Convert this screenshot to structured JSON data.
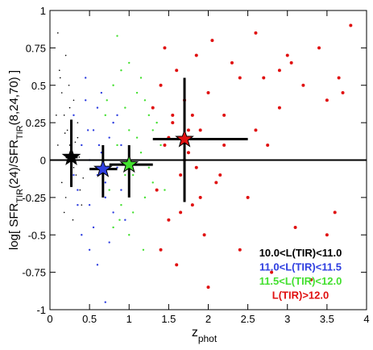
{
  "chart_data": {
    "type": "scatter",
    "xlabel_parts": [
      "z",
      "phot"
    ],
    "ylabel_parts": [
      "log[ SFR",
      "TIR",
      "(24)/SFR",
      "TIR",
      "(8,24,70) ]"
    ],
    "xlim": [
      0,
      4
    ],
    "ylim": [
      -1,
      1
    ],
    "xticks": [
      0,
      0.5,
      1,
      1.5,
      2,
      2.5,
      3,
      3.5,
      4
    ],
    "yticks": [
      -1,
      -0.75,
      -0.5,
      -0.25,
      0,
      0.25,
      0.5,
      0.75,
      1
    ],
    "hline": 0,
    "legend": "lower right",
    "series": [
      {
        "name": "10.0<L(TIR)<11.0",
        "color": "#000000",
        "marker_size": 0.8,
        "x": [
          0.1,
          0.12,
          0.15,
          0.18,
          0.2,
          0.22,
          0.25,
          0.28,
          0.3,
          0.33,
          0.35,
          0.38,
          0.4,
          0.15,
          0.2,
          0.25,
          0.3,
          0.35,
          0.1,
          0.18,
          0.22,
          0.27,
          0.32,
          0.13,
          0.24,
          0.29,
          0.37,
          0.42,
          0.08,
          0.19
        ],
        "y": [
          0.85,
          0.6,
          0.45,
          0.3,
          0.7,
          0.2,
          0.1,
          0.05,
          -0.05,
          -0.1,
          0.15,
          -0.2,
          -0.3,
          -0.15,
          -0.25,
          0.35,
          0.4,
          0.25,
          0.1,
          -0.35,
          0.0,
          -0.08,
          0.12,
          0.55,
          0.5,
          -0.4,
          0.02,
          -0.12,
          0.3,
          0.18
        ],
        "median": {
          "x": 0.27,
          "y": 0.02,
          "x_range": [
            0.2,
            0.35
          ],
          "y_range": [
            -0.18,
            0.27
          ]
        }
      },
      {
        "name": "11.0<L(TIR)<11.5",
        "color": "#2f3fe0",
        "marker_size": 1.2,
        "x": [
          0.3,
          0.35,
          0.4,
          0.45,
          0.5,
          0.55,
          0.6,
          0.65,
          0.7,
          0.75,
          0.8,
          0.85,
          0.9,
          0.95,
          0.4,
          0.5,
          0.6,
          0.7,
          0.8,
          0.45,
          0.55,
          0.65,
          0.75,
          0.35,
          0.5,
          0.6,
          0.85,
          0.9,
          0.3,
          0.7,
          0.62,
          0.48
        ],
        "y": [
          0.3,
          -0.2,
          0.1,
          0.4,
          -0.3,
          0.2,
          -0.1,
          0.05,
          -0.25,
          0.15,
          -0.35,
          -0.05,
          0.1,
          -0.4,
          -0.5,
          -0.6,
          0.35,
          -0.15,
          0.25,
          0.55,
          -0.45,
          0.45,
          -0.55,
          -0.3,
          0.0,
          -0.7,
          0.3,
          -0.2,
          -0.1,
          -0.95,
          0.1,
          0.2
        ],
        "median": {
          "x": 0.67,
          "y": -0.06,
          "x_range": [
            0.5,
            0.85
          ],
          "y_range": [
            -0.25,
            0.1
          ]
        }
      },
      {
        "name": "11.5<L(TIR)<12.0",
        "color": "#44e030",
        "marker_size": 1.2,
        "x": [
          0.7,
          0.75,
          0.8,
          0.85,
          0.9,
          0.95,
          1.0,
          1.05,
          1.1,
          1.15,
          1.2,
          1.25,
          1.3,
          1.35,
          1.4,
          0.8,
          0.9,
          1.0,
          1.1,
          1.2,
          0.65,
          0.95,
          1.05,
          1.15,
          1.25,
          1.3,
          0.85,
          1.45,
          0.72,
          1.18,
          1.0,
          0.88
        ],
        "y": [
          0.3,
          -0.2,
          0.5,
          0.1,
          -0.3,
          0.35,
          0.2,
          -0.1,
          0.45,
          0.05,
          -0.25,
          0.3,
          -0.15,
          0.25,
          0.1,
          -0.45,
          0.6,
          -0.5,
          0.15,
          0.4,
          0.0,
          -0.1,
          -0.35,
          0.55,
          -0.05,
          0.2,
          0.83,
          -0.2,
          0.4,
          -0.6,
          0.65,
          -0.4
        ],
        "median": {
          "x": 1.0,
          "y": -0.03,
          "x_range": [
            0.75,
            1.3
          ],
          "y_range": [
            -0.25,
            0.1
          ]
        }
      },
      {
        "name": "L(TIR)>12.0",
        "color": "#e01010",
        "marker_size": 2,
        "x": [
          1.3,
          1.35,
          1.4,
          1.45,
          1.5,
          1.55,
          1.6,
          1.65,
          1.7,
          1.75,
          1.8,
          1.85,
          1.9,
          1.95,
          2.0,
          2.05,
          2.1,
          2.2,
          2.3,
          2.4,
          2.5,
          2.6,
          2.7,
          2.8,
          2.9,
          3.0,
          3.1,
          3.2,
          3.3,
          3.4,
          3.5,
          3.6,
          3.7,
          3.8,
          1.4,
          1.5,
          1.6,
          1.7,
          1.8,
          1.9,
          2.0,
          2.2,
          2.4,
          2.6,
          2.9,
          3.5,
          1.55,
          1.65,
          1.75,
          2.15,
          1.45,
          2.75,
          3.05,
          3.65,
          1.85
        ],
        "y": [
          0.35,
          -0.2,
          0.5,
          0.1,
          -0.4,
          0.25,
          0.6,
          -0.1,
          0.4,
          0.05,
          -0.3,
          0.7,
          0.2,
          -0.5,
          0.45,
          0.8,
          -0.15,
          0.3,
          0.65,
          -0.6,
          -0.25,
          0.85,
          0.55,
          -0.75,
          0.35,
          0.7,
          -0.45,
          0.5,
          -0.8,
          0.75,
          0.4,
          -0.35,
          0.45,
          0.9,
          -0.6,
          0.15,
          -0.7,
          0.0,
          0.3,
          -0.25,
          -0.85,
          0.1,
          0.55,
          0.2,
          0.6,
          -0.5,
          0.3,
          -0.35,
          0.2,
          -0.1,
          0.75,
          0.1,
          0.65,
          0.55,
          -0.05
        ],
        "median": {
          "x": 1.7,
          "y": 0.14,
          "x_range": [
            1.3,
            2.5
          ],
          "y_range": [
            -0.28,
            0.55
          ]
        }
      }
    ]
  }
}
